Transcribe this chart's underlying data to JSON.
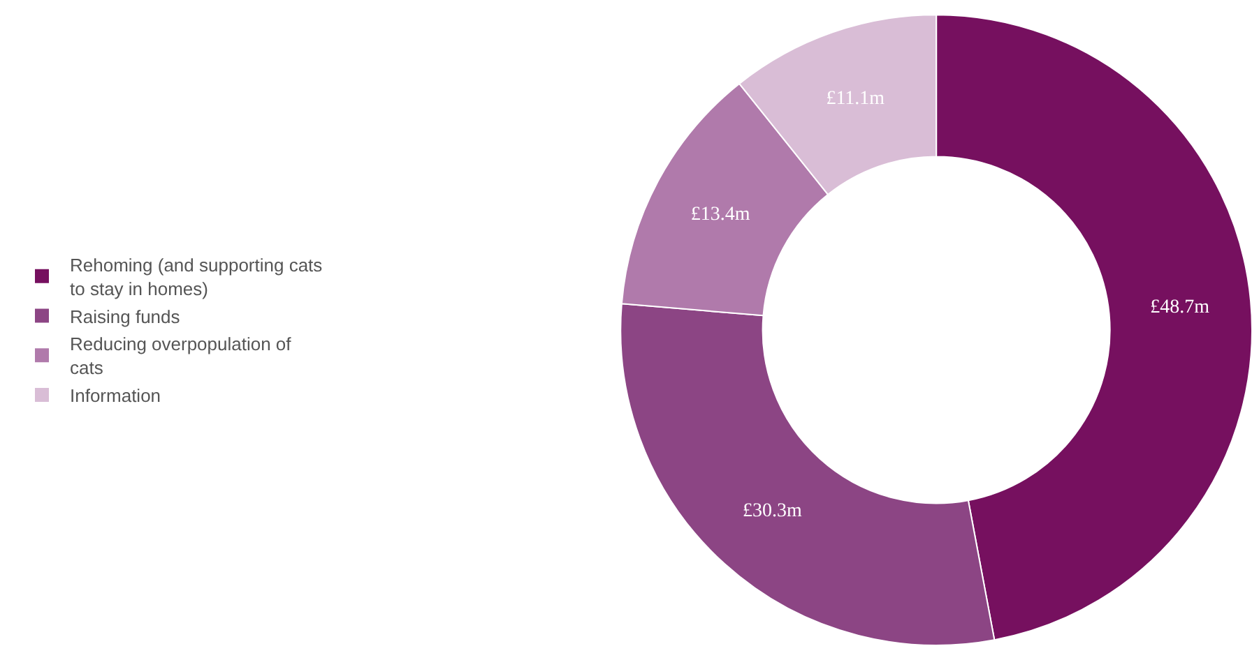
{
  "chart_data": {
    "type": "donut",
    "categories": [
      "Rehoming (and supporting cats to stay in homes)",
      "Raising funds",
      "Reducing overpopulation of cats",
      "Information"
    ],
    "values": [
      48.7,
      30.3,
      13.4,
      11.1
    ],
    "value_labels": [
      "£48.7m",
      "£30.3m",
      "£13.4m",
      "£11.1m"
    ],
    "colors": [
      "#76105f",
      "#8c4584",
      "#b07aab",
      "#d9bdd6"
    ],
    "legend": "left"
  }
}
